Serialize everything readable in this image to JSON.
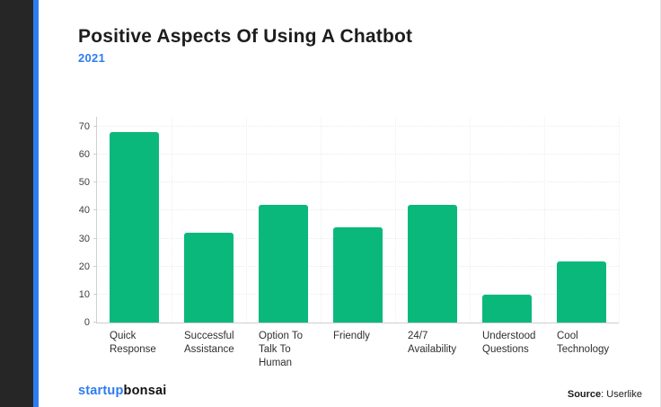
{
  "page": {
    "title": "Positive Aspects Of Using A Chatbot",
    "subtitle": "2021"
  },
  "branding": {
    "logo_part1": "startup",
    "logo_part2": "bonsai"
  },
  "source": {
    "label": "Source",
    "value": ": Userlike"
  },
  "colors": {
    "bar": "#0bb87c",
    "accent_blue": "#2e7bf0",
    "sidebar_dark": "#262626",
    "axis_line": "#cfcfcf",
    "grid_line": "#ebebeb",
    "title_text": "#1d1d1d",
    "tick_text": "#3d3d3d"
  },
  "chart_data": {
    "type": "bar",
    "title": "Positive Aspects Of Using A Chatbot",
    "subtitle": "2021",
    "categories": [
      "Quick Response",
      "Successful Assistance",
      "Option To Talk To Human",
      "Friendly",
      "24/7 Availability",
      "Understood Questions",
      "Cool Technology"
    ],
    "category_lines": [
      [
        "Quick",
        "Response"
      ],
      [
        "Successful",
        "Assistance"
      ],
      [
        "Option To",
        "Talk To",
        "Human"
      ],
      [
        "Friendly"
      ],
      [
        "24/7",
        "Availability"
      ],
      [
        "Understood",
        "Questions"
      ],
      [
        "Cool",
        "Technology"
      ]
    ],
    "values": [
      68,
      32,
      42,
      34,
      42,
      10,
      22
    ],
    "xlabel": "",
    "ylabel": "",
    "ylim": [
      0,
      70
    ],
    "yticks": [
      0,
      10,
      20,
      30,
      40,
      50,
      60,
      70
    ],
    "grid": true,
    "legend": null,
    "bar_color": "#0bb87c",
    "source": "Source: Userlike"
  }
}
